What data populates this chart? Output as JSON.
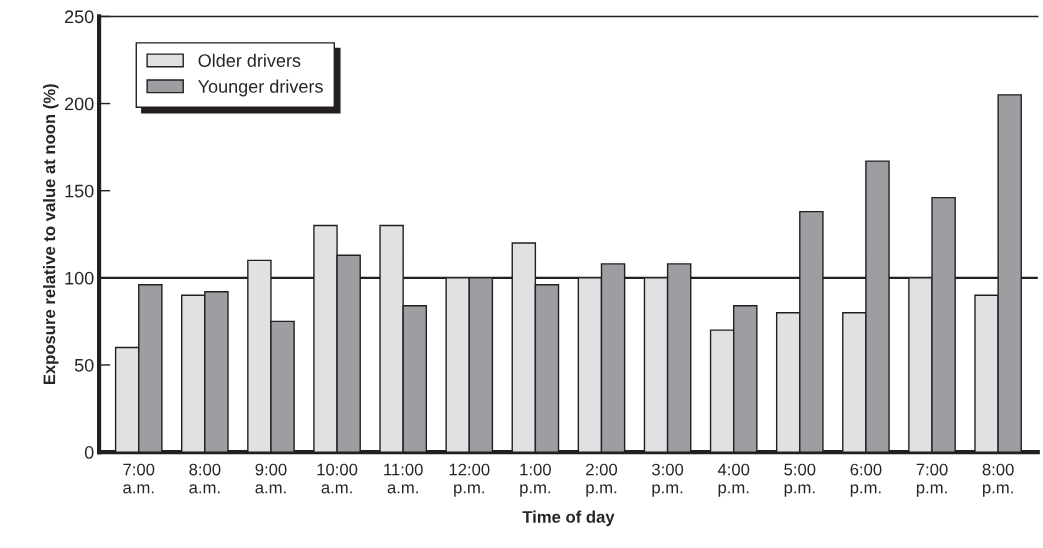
{
  "chart_data": {
    "type": "bar",
    "xlabel": "Time of day",
    "ylabel": "Exposure relative to value at noon (%)",
    "categories": [
      "7:00\na.m.",
      "8:00\na.m.",
      "9:00\na.m.",
      "10:00\na.m.",
      "11:00\na.m.",
      "12:00\np.m.",
      "1:00\np.m.",
      "2:00\np.m.",
      "3:00\np.m.",
      "4:00\np.m.",
      "5:00\np.m.",
      "6:00\np.m.",
      "7:00\np.m.",
      "8:00\np.m."
    ],
    "series": [
      {
        "name": "Older drivers",
        "color": "#e0e1e3",
        "values": [
          60,
          90,
          110,
          130,
          130,
          100,
          120,
          100,
          100,
          70,
          80,
          80,
          100,
          90
        ]
      },
      {
        "name": "Younger drivers",
        "color": "#9d9ea2",
        "values": [
          96,
          92,
          75,
          113,
          84,
          100,
          96,
          108,
          108,
          84,
          138,
          167,
          146,
          205
        ]
      }
    ],
    "ylim": [
      0,
      250
    ],
    "yticks": [
      0,
      50,
      100,
      150,
      200,
      250
    ],
    "ref_lines": [
      {
        "axis": "y",
        "value": 100,
        "color": "#231f20",
        "line_style": "solid"
      }
    ],
    "grid": false,
    "legend": "top left"
  }
}
